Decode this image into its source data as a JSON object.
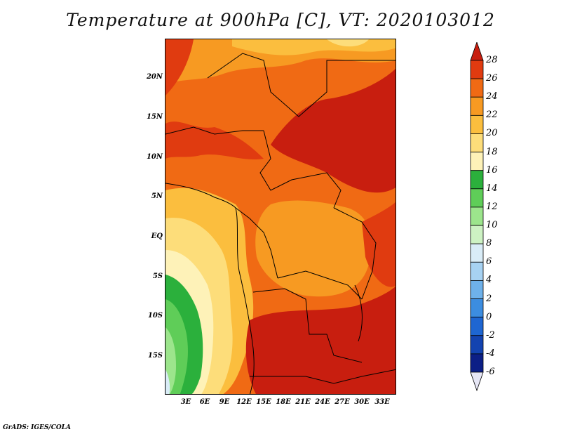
{
  "title": "Temperature at 900hPa [C], VT: 2020103012",
  "credit": "GrADS: IGES/COLA",
  "lat_labels": [
    "20N",
    "15N",
    "10N",
    "5N",
    "EQ",
    "5S",
    "10S",
    "15S"
  ],
  "lon_labels": [
    "3E",
    "6E",
    "9E",
    "12E",
    "15E",
    "18E",
    "21E",
    "24E",
    "27E",
    "30E",
    "33E"
  ],
  "colorbar": {
    "levels": [
      "28",
      "26",
      "24",
      "22",
      "20",
      "18",
      "16",
      "14",
      "12",
      "10",
      "8",
      "6",
      "4",
      "2",
      "0",
      "-2",
      "-4",
      "-6"
    ],
    "colors": [
      "#c81e0f",
      "#e03b10",
      "#f06a14",
      "#f79a22",
      "#fbbe3e",
      "#fddd7a",
      "#fef2b8",
      "#2bb03c",
      "#5fcd58",
      "#9ce58c",
      "#cdf2c3",
      "#d9ecf7",
      "#a7d2f2",
      "#6eb1ea",
      "#3c8de0",
      "#1e66d2",
      "#1343b0",
      "#0c1f86",
      "#07104e"
    ]
  }
}
